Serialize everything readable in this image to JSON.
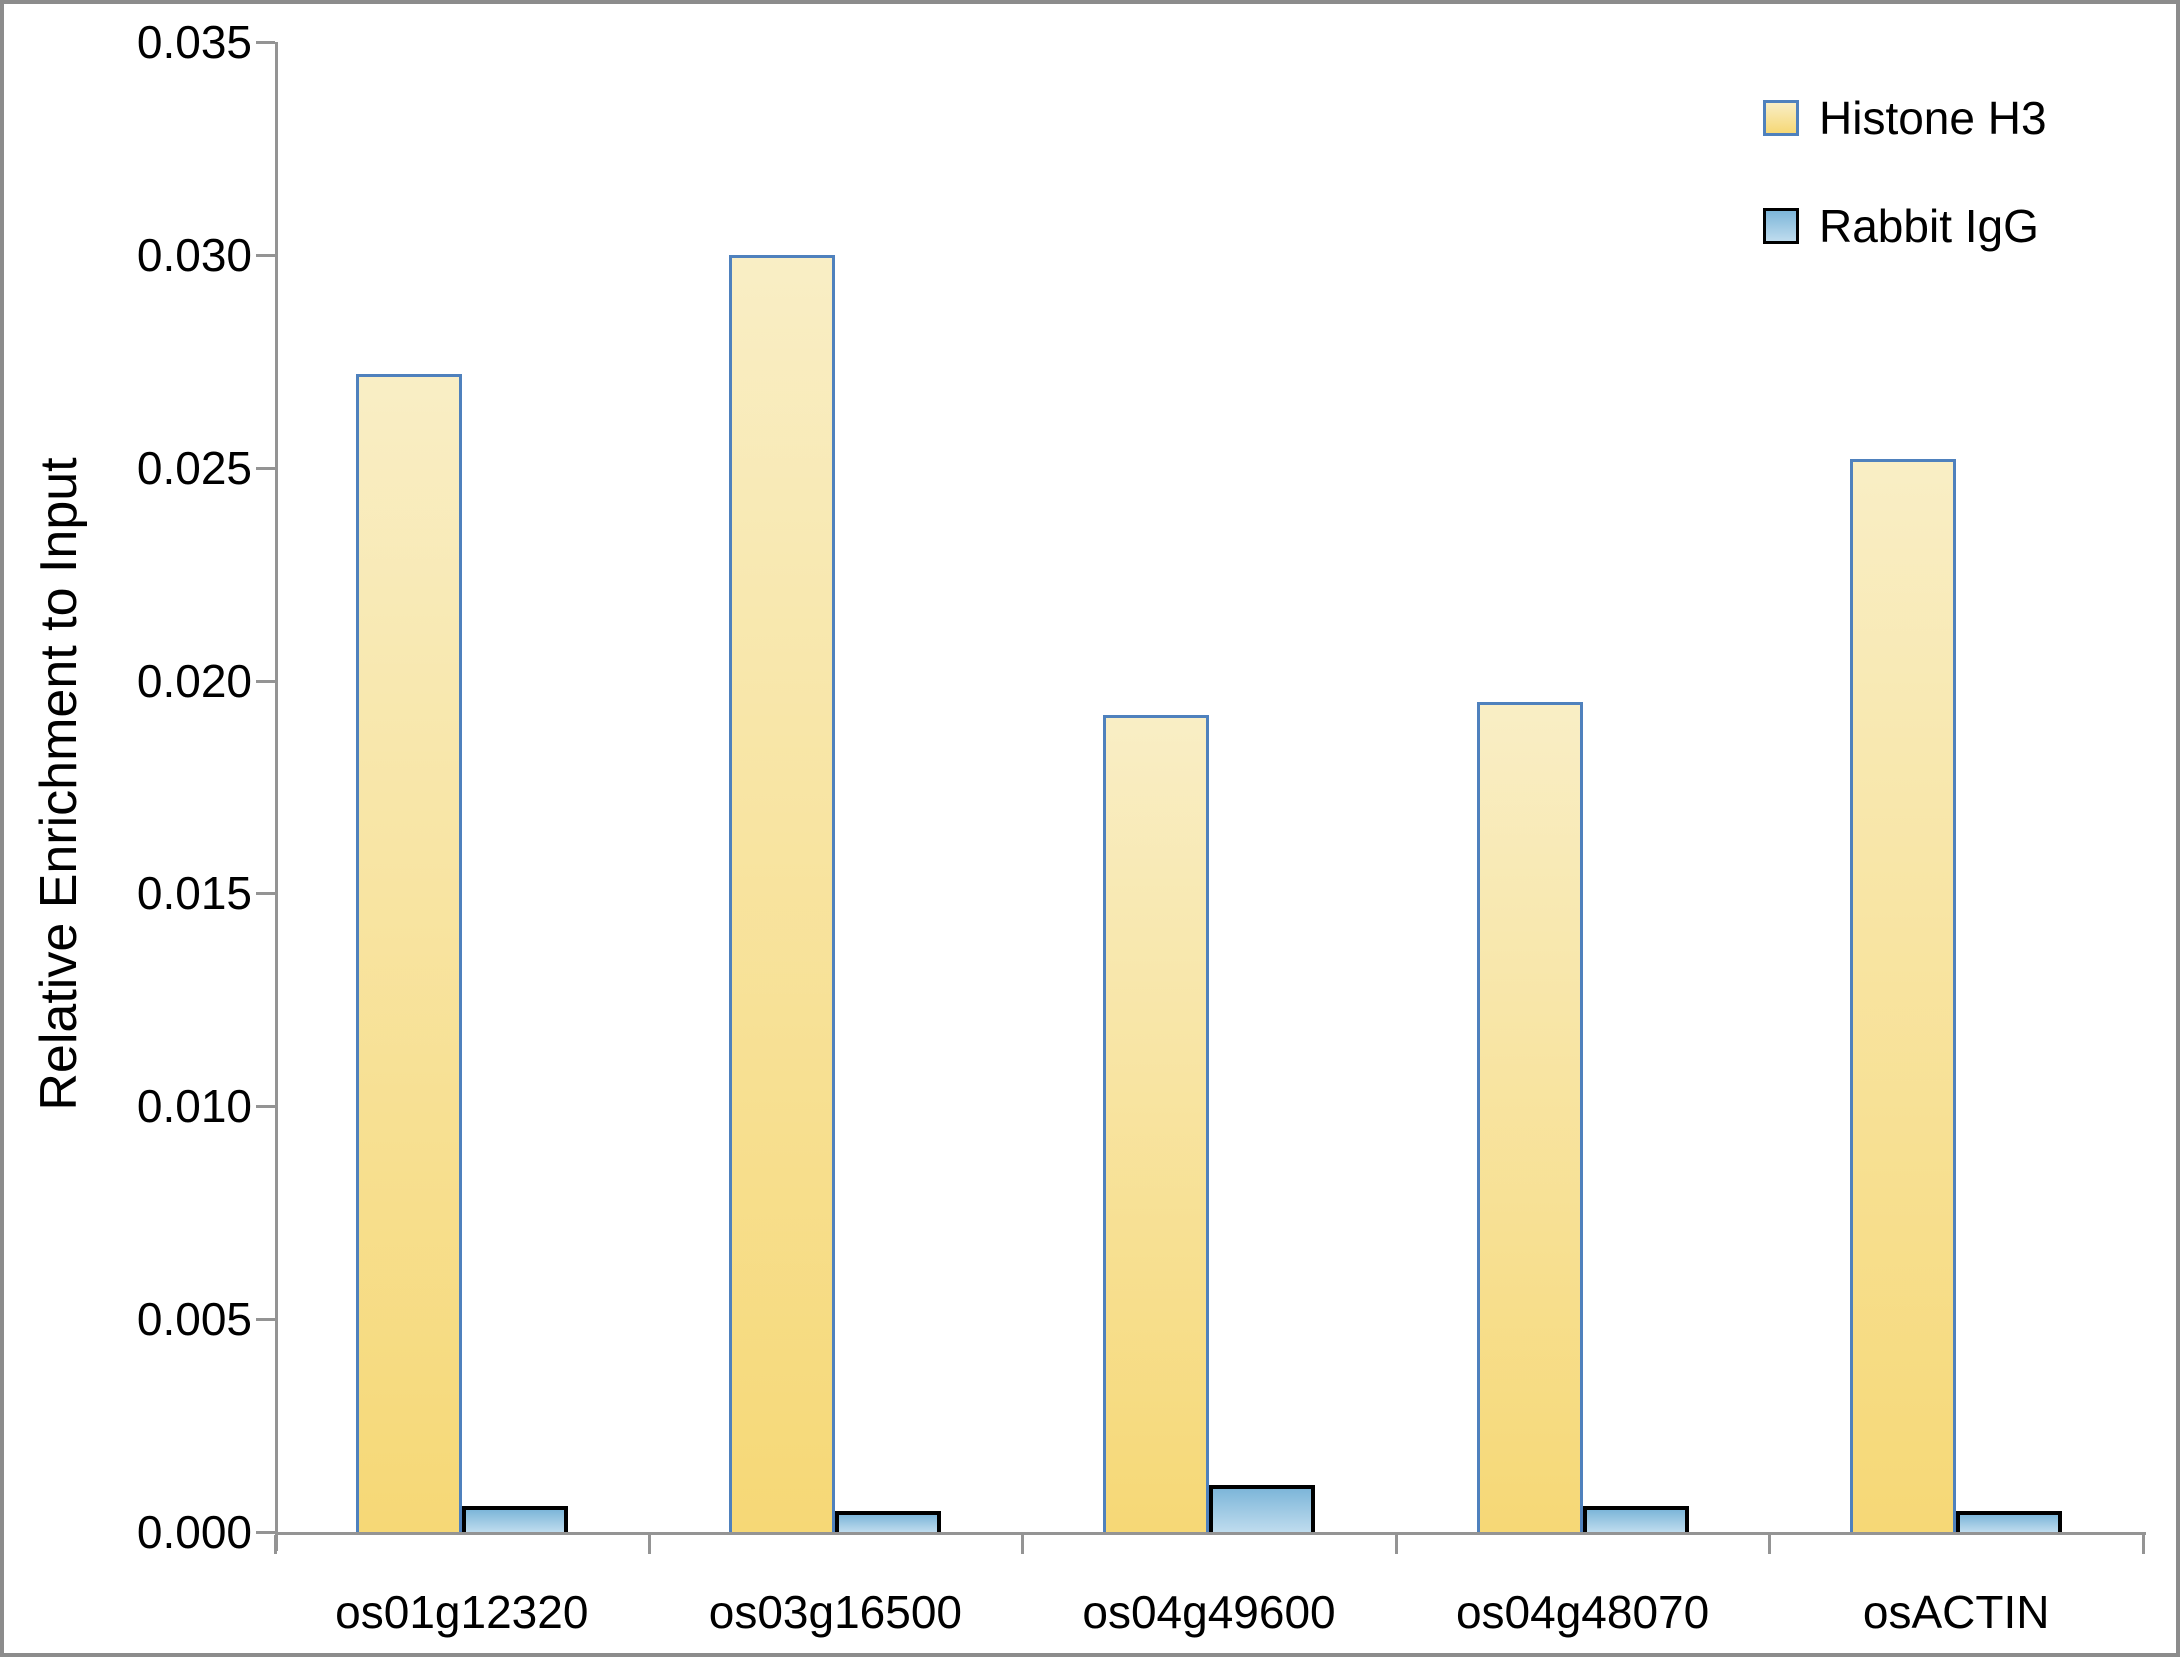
{
  "chart_data": {
    "type": "bar",
    "title": "",
    "ylabel": "Relative Enrichment to Input",
    "xlabel": "",
    "categories": [
      "os01g12320",
      "os03g16500",
      "os04g49600",
      "os04g48070",
      "osACTIN"
    ],
    "series": [
      {
        "name": "Histone H3",
        "values": [
          0.0272,
          0.03,
          0.0192,
          0.0195,
          0.0252
        ],
        "fill_top": "#F9EEC5",
        "fill_bottom": "#F6D876",
        "border_color": "#4F81BD"
      },
      {
        "name": "Rabbit IgG",
        "values": [
          0.0006,
          0.0005,
          0.0011,
          0.0006,
          0.0005
        ],
        "fill_top": "#7DB6D9",
        "fill_bottom": "#BFDCEE",
        "border_color": "#000000"
      }
    ],
    "ylim": [
      0,
      0.035
    ],
    "ytick_step": 0.005,
    "ytick_labels": [
      "0.000",
      "0.005",
      "0.010",
      "0.015",
      "0.020",
      "0.025",
      "0.030",
      "0.035"
    ],
    "grid": false,
    "legend_position": "top-right"
  },
  "style": {
    "axis_color": "#949494",
    "frame_color": "#8C8C8C",
    "text_color": "#000000"
  }
}
